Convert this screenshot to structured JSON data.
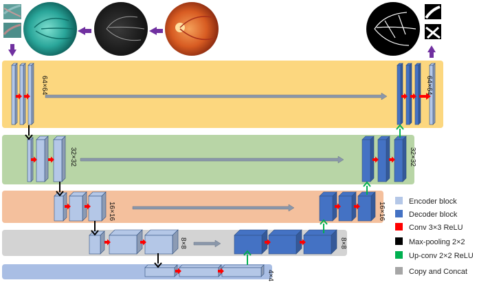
{
  "diagram": {
    "levels": [
      {
        "id": "level-64",
        "size_label": "64×64",
        "band_color": "#fcd77f"
      },
      {
        "id": "level-32",
        "size_label": "32×32",
        "band_color": "#b8d5a6"
      },
      {
        "id": "level-16",
        "size_label": "16×16",
        "band_color": "#f4c09d"
      },
      {
        "id": "level-8",
        "size_label": "8×8",
        "band_color": "#d3d3d3"
      },
      {
        "id": "level-4",
        "size_label": "4×4",
        "band_color": "#a9bee4"
      }
    ],
    "colors": {
      "encoder": "#b4c7e7",
      "decoder": "#4472c4",
      "conv": "#ff0000",
      "pool": "#000000",
      "upconv": "#00b050",
      "copy": "#a6a6a6",
      "input_arrow": "#7030a0"
    },
    "legend": [
      {
        "key": "encoder",
        "label": "Encoder block"
      },
      {
        "key": "decoder",
        "label": "Decoder block"
      },
      {
        "key": "conv",
        "label": "Conv 3×3 ReLU"
      },
      {
        "key": "pool",
        "label": "Max-pooling 2×2"
      },
      {
        "key": "upconv",
        "label": "Up-conv 2×2 ReLU"
      },
      {
        "key": "copy",
        "label": "Copy and Concat"
      }
    ],
    "images": [
      "fundus-color",
      "fundus-vessel-map",
      "fundus-preprocessed",
      "input-patches",
      "segmentation-output",
      "output-patches"
    ]
  }
}
